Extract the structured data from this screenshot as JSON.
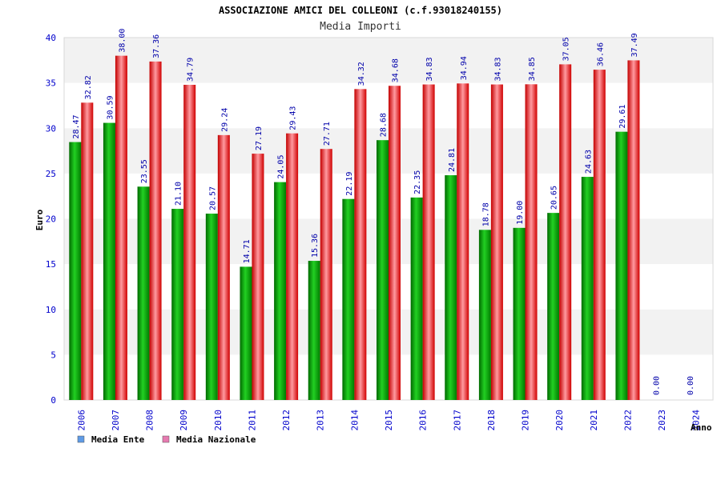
{
  "chart_data": {
    "type": "bar",
    "title": "ASSOCIAZIONE AMICI DEL COLLEONI (c.f.93018240155)",
    "subtitle": "Media Importi",
    "xlabel": "Anno",
    "ylabel": "Euro",
    "ylim": [
      0,
      40
    ],
    "yticks": [
      "0",
      "5",
      "10",
      "15",
      "20",
      "25",
      "30",
      "35",
      "40"
    ],
    "categories": [
      "2006",
      "2007",
      "2008",
      "2009",
      "2010",
      "2011",
      "2012",
      "2013",
      "2014",
      "2015",
      "2016",
      "2017",
      "2018",
      "2019",
      "2020",
      "2021",
      "2022",
      "2023",
      "2024"
    ],
    "series": [
      {
        "name": "Media Ente",
        "values": [
          28.47,
          30.59,
          23.55,
          21.1,
          20.57,
          14.71,
          24.05,
          15.36,
          22.19,
          28.68,
          22.35,
          24.81,
          18.78,
          19.0,
          20.65,
          24.63,
          29.61,
          0.0,
          0.0
        ],
        "labels": [
          "28.47",
          "30.59",
          "23.55",
          "21.10",
          "20.57",
          "14.71",
          "24.05",
          "15.36",
          "22.19",
          "28.68",
          "22.35",
          "24.81",
          "18.78",
          "19.00",
          "20.65",
          "24.63",
          "29.61",
          "0.00",
          "0.00"
        ]
      },
      {
        "name": "Media Nazionale",
        "values": [
          32.82,
          38.0,
          37.36,
          34.79,
          29.24,
          27.19,
          29.43,
          27.71,
          34.32,
          34.68,
          34.83,
          34.94,
          34.83,
          34.85,
          37.05,
          36.46,
          37.49,
          null,
          null
        ],
        "labels": [
          "32.82",
          "38.00",
          "37.36",
          "34.79",
          "29.24",
          "27.19",
          "29.43",
          "27.71",
          "34.32",
          "34.68",
          "34.83",
          "34.94",
          "34.83",
          "34.85",
          "37.05",
          "36.46",
          "37.49",
          "",
          ""
        ]
      }
    ],
    "legend": {
      "position": "bottom-left",
      "items": [
        {
          "label": "Media Ente",
          "color": "#5f9be6"
        },
        {
          "label": "Media Nazionale",
          "color": "#e67ab0"
        }
      ]
    },
    "grid": true,
    "colors": {
      "ente_bar": "#00b200",
      "ente_bar_dark": "#006600",
      "naz_bar": "#ff2020",
      "naz_bar_dark": "#a00000",
      "band": "#f2f2f2",
      "axis_text": "#0000cc"
    }
  }
}
